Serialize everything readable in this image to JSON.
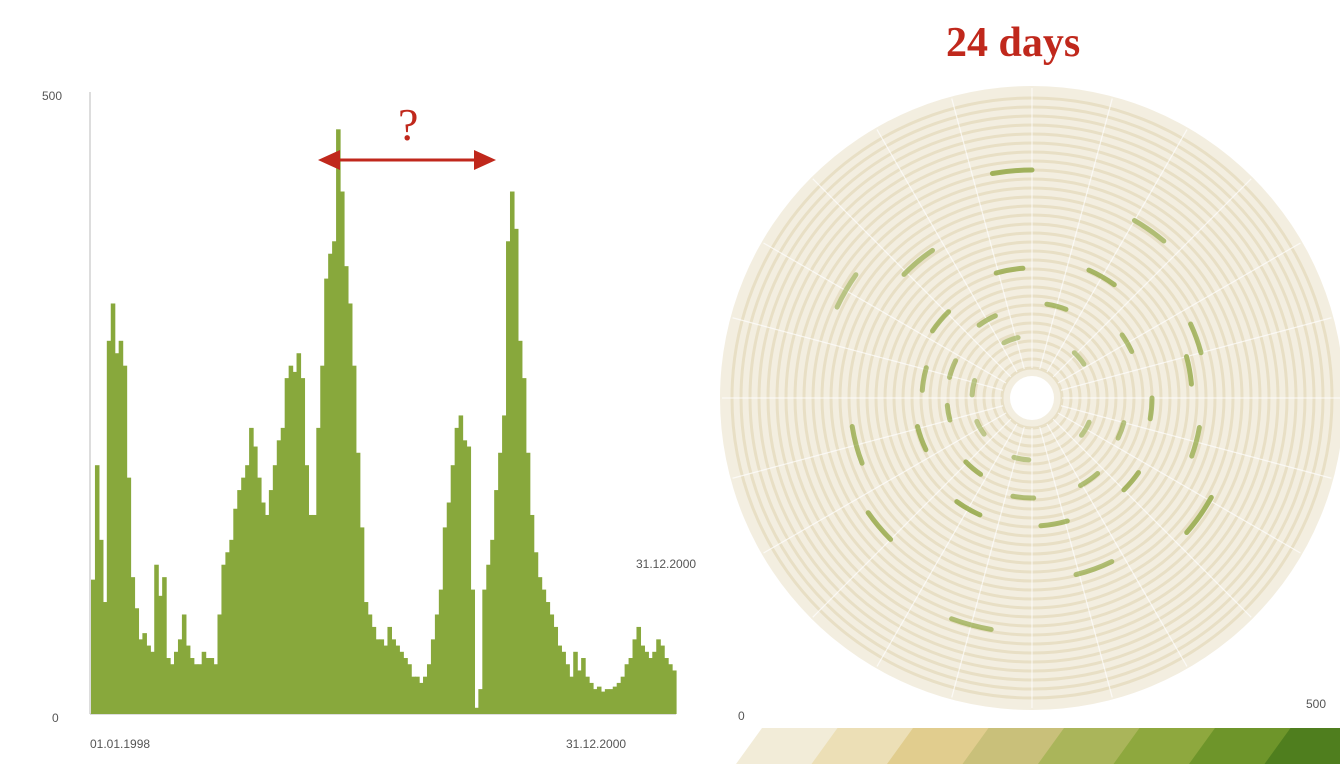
{
  "colors": {
    "bar": "#88a83c",
    "accent": "#c0281c",
    "spiral_bg": "#f3eee0",
    "spiral_track": "#e8dfc5",
    "spiral_mark": "#93a846",
    "axis": "#bbbbbb"
  },
  "annotation": {
    "title": "24 days",
    "question": "?"
  },
  "chart_data": [
    {
      "type": "bar",
      "title": "",
      "xlabel": "",
      "ylabel": "",
      "ylim": [
        0,
        500
      ],
      "y_ticks": [
        "500",
        "0"
      ],
      "x_ticks": [
        "01.01.1998",
        "31.12.2000"
      ],
      "grid": false,
      "series": [
        {
          "values": [
            108,
            200,
            140,
            90,
            300,
            330,
            290,
            300,
            280,
            190,
            110,
            85,
            60,
            65,
            55,
            50,
            120,
            95,
            110,
            45,
            40,
            50,
            60,
            80,
            55,
            45,
            40,
            40,
            50,
            45,
            45,
            40,
            80,
            120,
            130,
            140,
            165,
            180,
            190,
            200,
            230,
            215,
            190,
            170,
            160,
            180,
            200,
            220,
            230,
            270,
            280,
            275,
            290,
            270,
            200,
            160,
            160,
            230,
            280,
            350,
            370,
            380,
            470,
            420,
            360,
            330,
            280,
            210,
            150,
            90,
            80,
            70,
            60,
            60,
            55,
            70,
            60,
            55,
            50,
            45,
            40,
            30,
            30,
            25,
            30,
            40,
            60,
            80,
            100,
            150,
            170,
            200,
            230,
            240,
            220,
            215,
            100,
            5,
            20,
            100,
            120,
            140,
            180,
            210,
            240,
            380,
            420,
            390,
            300,
            270,
            210,
            160,
            130,
            110,
            100,
            90,
            80,
            70,
            55,
            50,
            40,
            30,
            50,
            35,
            45,
            30,
            25,
            20,
            22,
            18,
            20,
            20,
            22,
            25,
            30,
            40,
            45,
            60,
            70,
            55,
            50,
            45,
            50,
            60,
            55,
            45,
            40,
            35
          ]
        }
      ]
    },
    {
      "type": "spiral",
      "title": "",
      "period_label": "24 days",
      "start_label": "31.12.2000",
      "legend_labels": [
        "0",
        "500"
      ],
      "legend_placement": "bottom",
      "grid": false
    }
  ]
}
